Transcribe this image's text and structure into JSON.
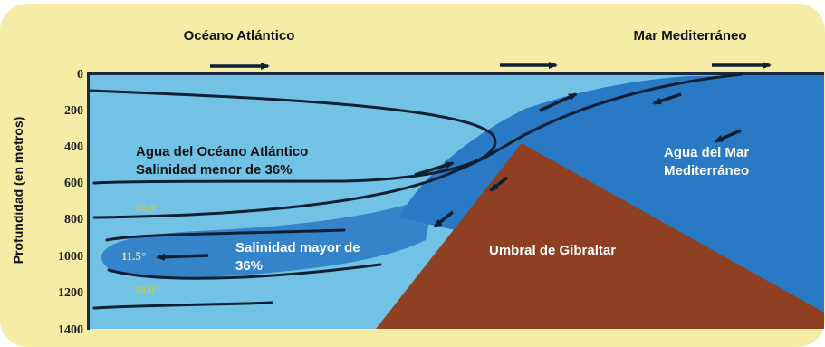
{
  "titles": {
    "atlantic": "Océano Atlántico",
    "mediterranean": "Mar Mediterráneo"
  },
  "y_axis": {
    "label": "Profundidad (en metros)",
    "ticks": [
      "0",
      "200",
      "400",
      "600",
      "800",
      "1000",
      "1200",
      "1400"
    ]
  },
  "labels": {
    "atlantic_water_line1": "Agua del Océano Atlántico",
    "atlantic_water_line2": "Salinidad menor de 36%",
    "higher_salinity_line1": "Salinidad mayor de",
    "higher_salinity_line2": "36%",
    "sill": "Umbral de Gibraltar",
    "med_water_line1": "Agua del Mar",
    "med_water_line2": "Mediterráneo"
  },
  "isotherms": {
    "upper": "10.0°",
    "core": "11.5°",
    "lower": "10.0°"
  },
  "colors": {
    "background": "#f7eca6",
    "atlantic_water": "#72c2e6",
    "mediterranean_water": "#2a79c4",
    "sill": "#8f3f22",
    "isotherm_text": "#b5c86a"
  }
}
